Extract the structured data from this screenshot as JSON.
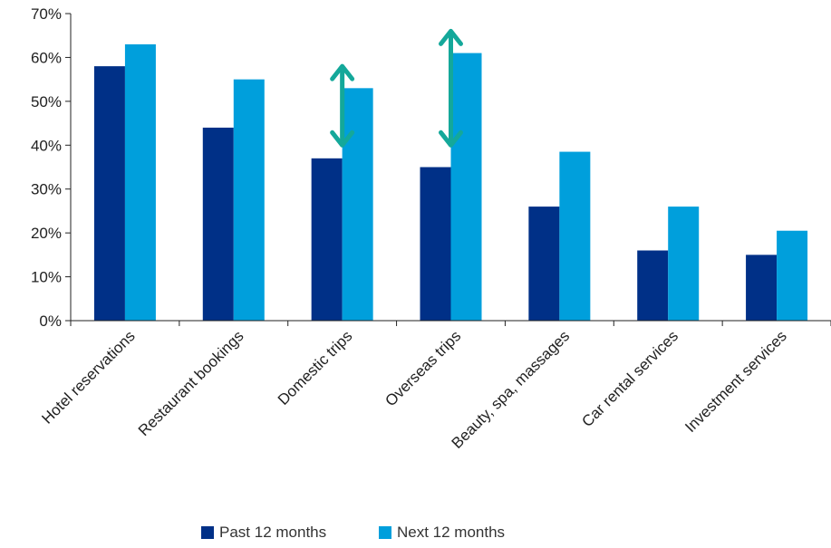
{
  "chart_data": {
    "type": "bar",
    "title": "",
    "xlabel": "",
    "ylabel": "",
    "ylim": [
      0,
      70
    ],
    "yticks": [
      0,
      10,
      20,
      30,
      40,
      50,
      60,
      70
    ],
    "ytick_labels": [
      "0%",
      "10%",
      "20%",
      "30%",
      "40%",
      "50%",
      "60%",
      "70%"
    ],
    "categories": [
      "Hotel reservations",
      "Restaurant bookings",
      "Domestic trips",
      "Overseas trips",
      "Beauty, spa, massages",
      "Car rental services",
      "Investment services"
    ],
    "series": [
      {
        "name": "Past 12 months",
        "color": "#003087",
        "values": [
          58,
          44,
          37,
          35,
          26,
          16,
          15
        ]
      },
      {
        "name": "Next 12 months",
        "color": "#009fdc",
        "values": [
          63,
          55,
          53,
          61,
          38.5,
          26,
          20.5
        ]
      }
    ],
    "annotations": [
      {
        "type": "double-arrow",
        "category": "Domestic trips",
        "from": 40,
        "to": 58,
        "color": "#14a89a"
      },
      {
        "type": "double-arrow",
        "category": "Overseas trips",
        "from": 40,
        "to": 66,
        "color": "#14a89a"
      }
    ],
    "grid": false,
    "legend_position": "bottom"
  }
}
